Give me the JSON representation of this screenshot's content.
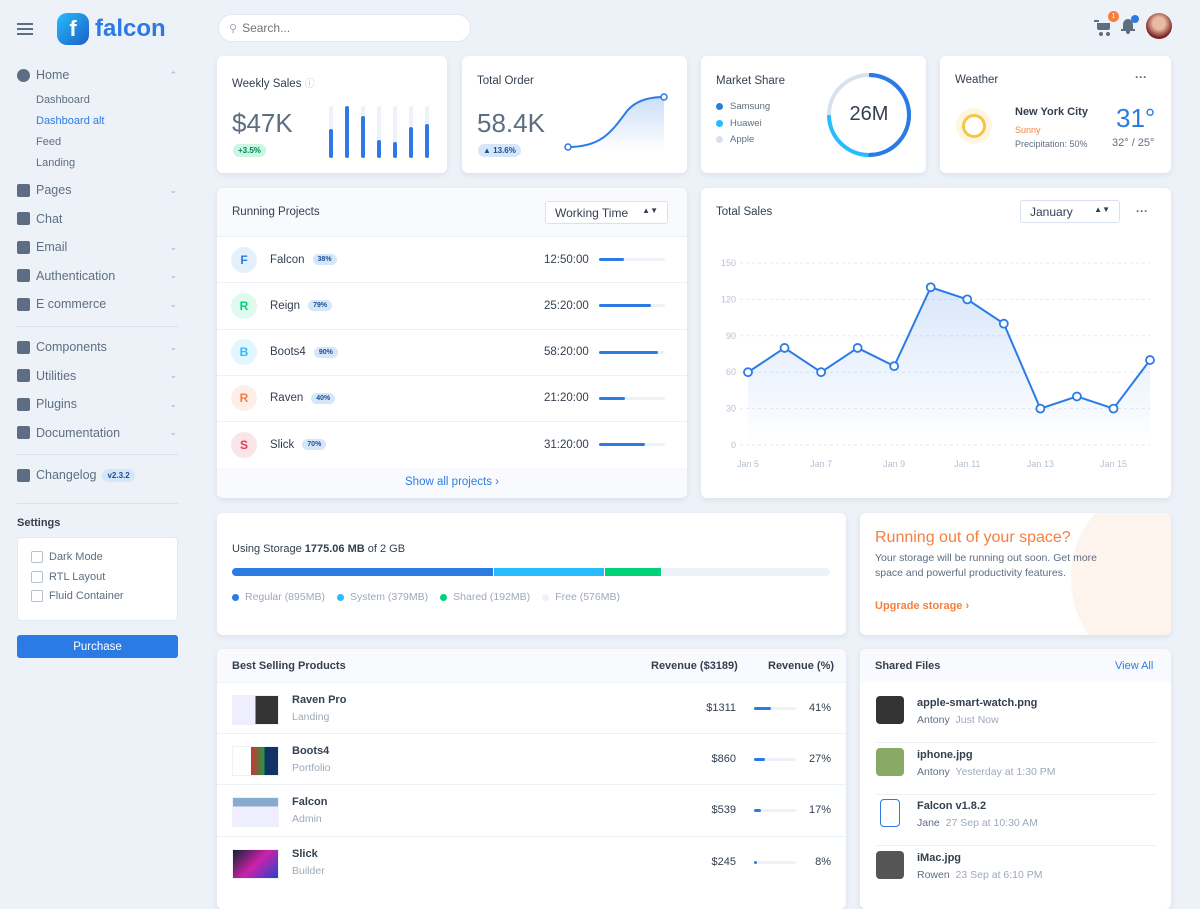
{
  "brand": {
    "name": "falcon"
  },
  "search": {
    "placeholder": "Search..."
  },
  "header": {
    "cart_count": "1"
  },
  "sidebar": {
    "home": {
      "label": "Home",
      "children": [
        "Dashboard",
        "Dashboard alt",
        "Feed",
        "Landing"
      ],
      "active": "Dashboard alt"
    },
    "items": [
      {
        "label": "Pages",
        "icon": "pages-icon"
      },
      {
        "label": "Chat",
        "icon": "chat-icon"
      },
      {
        "label": "Email",
        "icon": "email-icon"
      },
      {
        "label": "Authentication",
        "icon": "lock-icon"
      },
      {
        "label": "E commerce",
        "icon": "cart-icon"
      }
    ],
    "items2": [
      {
        "label": "Components",
        "icon": "puzzle-icon"
      },
      {
        "label": "Utilities",
        "icon": "fire-icon"
      },
      {
        "label": "Plugins",
        "icon": "plug-icon"
      },
      {
        "label": "Documentation",
        "icon": "book-icon"
      }
    ],
    "changelog": {
      "label": "Changelog",
      "version": "v2.3.2"
    },
    "settings": {
      "title": "Settings",
      "options": [
        "Dark Mode",
        "RTL Layout",
        "Fluid Container"
      ]
    },
    "purchase": "Purchase"
  },
  "weekly_sales": {
    "title": "Weekly Sales",
    "value": "$47K",
    "change": "+3.5%",
    "bars": [
      55,
      100,
      80,
      35,
      30,
      60,
      65
    ]
  },
  "total_order": {
    "title": "Total Order",
    "value": "58.4K",
    "change": "13.6%"
  },
  "market_share": {
    "title": "Market Share",
    "total": "26M",
    "legend": [
      {
        "name": "Samsung",
        "color": "#2c7be5"
      },
      {
        "name": "Huawei",
        "color": "#27bcfd"
      },
      {
        "name": "Apple",
        "color": "#d8e2ef"
      }
    ]
  },
  "weather": {
    "title": "Weather",
    "city": "New York City",
    "condition": "Sunny",
    "precipitation": "Precipitation: 50%",
    "temp": "31°",
    "range": "32° / 25°"
  },
  "running_projects": {
    "title": "Running Projects",
    "select": "Working Time",
    "footer": "Show all projects ›",
    "projects": [
      {
        "letter": "F",
        "name": "Falcon",
        "pct": "38%",
        "time": "12:50:00",
        "progress": 38,
        "color": "#2c7be5",
        "bg": "#e6effc"
      },
      {
        "letter": "R",
        "name": "Reign",
        "pct": "79%",
        "time": "25:20:00",
        "progress": 79,
        "color": "#00d27a",
        "bg": "#e0faef"
      },
      {
        "letter": "B",
        "name": "Boots4",
        "pct": "90%",
        "time": "58:20:00",
        "progress": 90,
        "color": "#27bcfd",
        "bg": "#e1f6ff"
      },
      {
        "letter": "R",
        "name": "Raven",
        "pct": "40%",
        "time": "21:20:00",
        "progress": 40,
        "color": "#f5803e",
        "bg": "#fdefe7"
      },
      {
        "letter": "S",
        "name": "Slick",
        "pct": "70%",
        "time": "31:20:00",
        "progress": 70,
        "color": "#e63757",
        "bg": "#fce5e9"
      }
    ]
  },
  "chart_data": {
    "type": "line",
    "title": "Total Sales",
    "select": "January",
    "x": [
      "Jan 5",
      "Jan 6",
      "Jan 7",
      "Jan 8",
      "Jan 9",
      "Jan 10",
      "Jan 11",
      "Jan 12",
      "Jan 13",
      "Jan 14",
      "Jan 15",
      "Jan 16"
    ],
    "values": [
      60,
      80,
      60,
      80,
      65,
      130,
      120,
      100,
      30,
      40,
      30,
      70
    ],
    "xticks": [
      "Jan 5",
      "Jan 7",
      "Jan 9",
      "Jan 11",
      "Jan 13",
      "Jan 15"
    ],
    "yticks": [
      "0",
      "30",
      "60",
      "90",
      "120",
      "150"
    ],
    "ylim": [
      0,
      150
    ],
    "grid": true,
    "color": "#2c7be5"
  },
  "storage": {
    "prefix": "Using Storage ",
    "used": "1775.06 MB",
    "suffix": " of 2 GB",
    "segments": [
      {
        "label": "Regular (895MB)",
        "mb": 895,
        "color": "#2c7be5"
      },
      {
        "label": "System (379MB)",
        "mb": 379,
        "color": "#27bcfd"
      },
      {
        "label": "Shared (192MB)",
        "mb": 192,
        "color": "#00d27a"
      },
      {
        "label": "Free (576MB)",
        "mb": 576,
        "color": "#edf2f9"
      }
    ]
  },
  "space": {
    "title": "Running out of your space?",
    "text": "Your storage will be running out soon. Get more space and powerful productivity features.",
    "link": "Upgrade storage ›"
  },
  "products": {
    "title": "Best Selling Products",
    "col1": "Revenue ($3189)",
    "col2": "Revenue (%)",
    "rows": [
      {
        "name": "Raven Pro",
        "cat": "Landing",
        "rev": "$1311",
        "pct": "41%",
        "p": 41
      },
      {
        "name": "Boots4",
        "cat": "Portfolio",
        "rev": "$860",
        "pct": "27%",
        "p": 27
      },
      {
        "name": "Falcon",
        "cat": "Admin",
        "rev": "$539",
        "pct": "17%",
        "p": 17
      },
      {
        "name": "Slick",
        "cat": "Builder",
        "rev": "$245",
        "pct": "8%",
        "p": 8
      }
    ]
  },
  "files": {
    "title": "Shared Files",
    "view_all": "View All",
    "rows": [
      {
        "name": "apple-smart-watch.png",
        "user": "Antony",
        "time": "Just Now"
      },
      {
        "name": "iphone.jpg",
        "user": "Antony",
        "time": "Yesterday at 1:30 PM"
      },
      {
        "name": "Falcon v1.8.2",
        "user": "Jane",
        "time": "27 Sep at 10:30 AM"
      },
      {
        "name": "iMac.jpg",
        "user": "Rowen",
        "time": "23 Sep at 6:10 PM"
      }
    ]
  }
}
